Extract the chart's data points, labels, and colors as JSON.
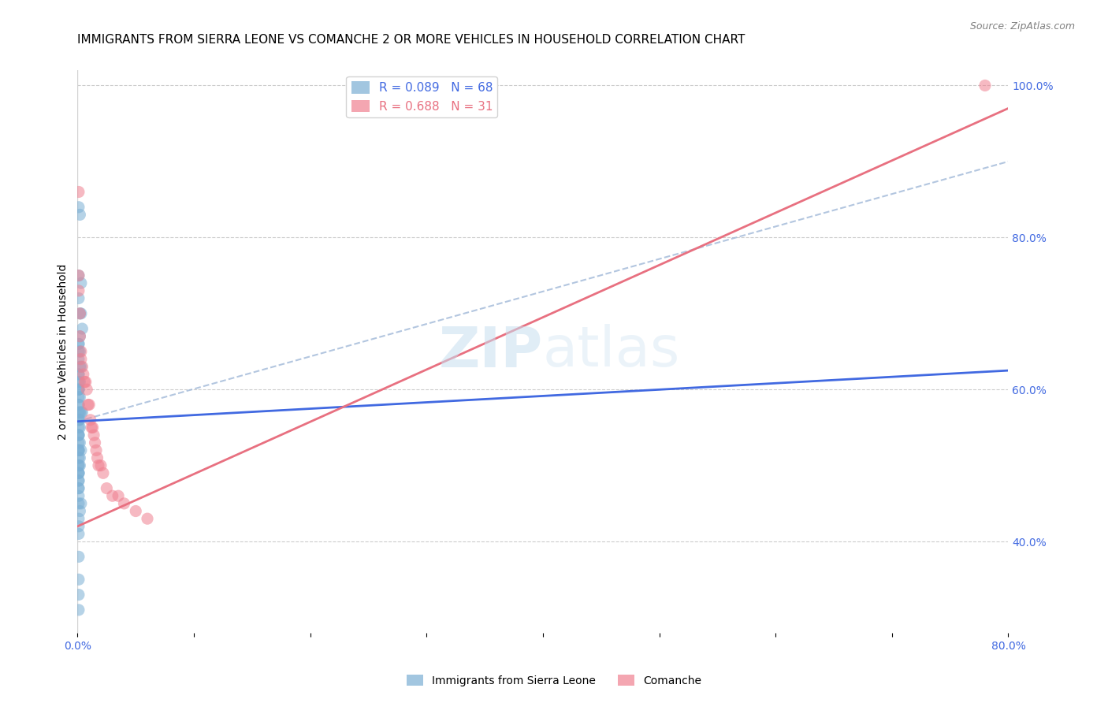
{
  "title": "IMMIGRANTS FROM SIERRA LEONE VS COMANCHE 2 OR MORE VEHICLES IN HOUSEHOLD CORRELATION CHART",
  "source": "Source: ZipAtlas.com",
  "ylabel": "2 or more Vehicles in Household",
  "legend_series": [
    {
      "label": "Immigrants from Sierra Leone",
      "color": "#a8c4e8",
      "R": 0.089,
      "N": 68
    },
    {
      "label": "Comanche",
      "color": "#f4a8b8",
      "R": 0.688,
      "N": 31
    }
  ],
  "blue_scatter_x": [
    0.001,
    0.002,
    0.001,
    0.003,
    0.001,
    0.002,
    0.003,
    0.004,
    0.002,
    0.001,
    0.001,
    0.002,
    0.001,
    0.001,
    0.002,
    0.003,
    0.001,
    0.001,
    0.001,
    0.002,
    0.001,
    0.001,
    0.001,
    0.002,
    0.001,
    0.001,
    0.001,
    0.002,
    0.001,
    0.003,
    0.004,
    0.002,
    0.001,
    0.001,
    0.001,
    0.002,
    0.001,
    0.001,
    0.001,
    0.001,
    0.002,
    0.001,
    0.001,
    0.001,
    0.003,
    0.002,
    0.001,
    0.001,
    0.002,
    0.001,
    0.001,
    0.001,
    0.001,
    0.001,
    0.001,
    0.001,
    0.001,
    0.001,
    0.001,
    0.003,
    0.002,
    0.001,
    0.001,
    0.001,
    0.001,
    0.001,
    0.001,
    0.001
  ],
  "blue_scatter_y": [
    0.84,
    0.83,
    0.75,
    0.74,
    0.72,
    0.7,
    0.7,
    0.68,
    0.67,
    0.66,
    0.66,
    0.65,
    0.65,
    0.64,
    0.63,
    0.63,
    0.62,
    0.62,
    0.61,
    0.61,
    0.6,
    0.6,
    0.6,
    0.59,
    0.59,
    0.58,
    0.58,
    0.57,
    0.57,
    0.57,
    0.57,
    0.56,
    0.56,
    0.56,
    0.55,
    0.55,
    0.54,
    0.54,
    0.54,
    0.53,
    0.53,
    0.52,
    0.52,
    0.52,
    0.52,
    0.51,
    0.51,
    0.5,
    0.5,
    0.5,
    0.49,
    0.49,
    0.49,
    0.48,
    0.48,
    0.47,
    0.47,
    0.46,
    0.45,
    0.45,
    0.44,
    0.43,
    0.42,
    0.41,
    0.38,
    0.35,
    0.33,
    0.31
  ],
  "pink_scatter_x": [
    0.001,
    0.001,
    0.001,
    0.002,
    0.002,
    0.003,
    0.003,
    0.004,
    0.005,
    0.006,
    0.007,
    0.008,
    0.009,
    0.01,
    0.011,
    0.012,
    0.013,
    0.014,
    0.015,
    0.016,
    0.017,
    0.018,
    0.02,
    0.022,
    0.025,
    0.03,
    0.035,
    0.04,
    0.05,
    0.06,
    0.78
  ],
  "pink_scatter_y": [
    0.86,
    0.75,
    0.73,
    0.7,
    0.67,
    0.65,
    0.64,
    0.63,
    0.62,
    0.61,
    0.61,
    0.6,
    0.58,
    0.58,
    0.56,
    0.55,
    0.55,
    0.54,
    0.53,
    0.52,
    0.51,
    0.5,
    0.5,
    0.49,
    0.47,
    0.46,
    0.46,
    0.45,
    0.44,
    0.43,
    1.0
  ],
  "blue_line": {
    "x0": 0.0,
    "x1": 0.8,
    "y0": 0.558,
    "y1": 0.625
  },
  "pink_line": {
    "x0": 0.0,
    "x1": 0.8,
    "y0": 0.42,
    "y1": 0.97
  },
  "blue_dash_line": {
    "x0": 0.0,
    "x1": 0.8,
    "y0": 0.558,
    "y1": 0.9
  },
  "xlim": [
    0.0,
    0.8
  ],
  "ylim": [
    0.28,
    1.02
  ],
  "right_yticks": [
    0.4,
    0.6,
    0.8,
    1.0
  ],
  "right_yticklabels": [
    "40.0%",
    "60.0%",
    "80.0%",
    "100.0%"
  ],
  "bottom_xticks": [
    0.0,
    0.1,
    0.2,
    0.3,
    0.4,
    0.5,
    0.6,
    0.7,
    0.8
  ],
  "bottom_xticklabels": [
    "0.0%",
    "",
    "",
    "",
    "",
    "",
    "",
    "",
    "80.0%"
  ],
  "scatter_size": 120,
  "scatter_alpha": 0.55,
  "blue_color": "#7bafd4",
  "pink_color": "#f08090",
  "blue_line_color": "#4169e1",
  "pink_line_color": "#e87080",
  "dash_line_color": "#a0b8d8",
  "title_fontsize": 11,
  "axis_label_fontsize": 10,
  "tick_fontsize": 10,
  "legend_fontsize": 11
}
